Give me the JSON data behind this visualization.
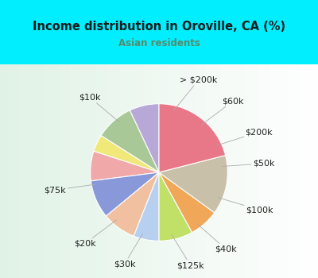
{
  "title": "Income distribution in Oroville, CA (%)",
  "subtitle": "Asian residents",
  "title_color": "#1a1a1a",
  "subtitle_color": "#5a8a6a",
  "background_cyan": "#00eeff",
  "background_chart": "#e0f0e8",
  "labels": [
    "> $200k",
    "$60k",
    "$200k",
    "$50k",
    "$100k",
    "$40k",
    "$125k",
    "$30k",
    "$20k",
    "$75k",
    "$10k"
  ],
  "values": [
    7,
    9,
    4,
    7,
    9,
    8,
    6,
    8,
    7,
    14,
    21
  ],
  "colors": [
    "#b8a8d8",
    "#a8c898",
    "#f0e878",
    "#f0a8a8",
    "#8898d8",
    "#f0c0a0",
    "#b8d0f0",
    "#c0e068",
    "#f0a858",
    "#c8c0a8",
    "#e87888"
  ],
  "startangle": 90,
  "label_fontsize": 8,
  "label_color": "#222222"
}
